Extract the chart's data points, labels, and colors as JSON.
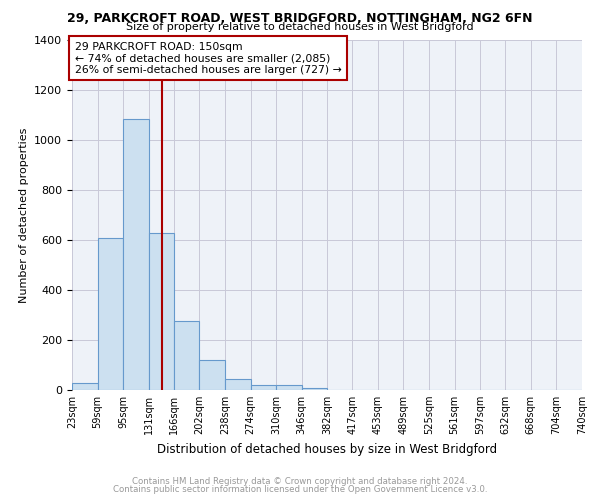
{
  "title": "29, PARKCROFT ROAD, WEST BRIDGFORD, NOTTINGHAM, NG2 6FN",
  "subtitle": "Size of property relative to detached houses in West Bridgford",
  "xlabel": "Distribution of detached houses by size in West Bridgford",
  "ylabel": "Number of detached properties",
  "annotation_line1": "29 PARKCROFT ROAD: 150sqm",
  "annotation_line2": "← 74% of detached houses are smaller (2,085)",
  "annotation_line3": "26% of semi-detached houses are larger (727) →",
  "property_size": 150,
  "bar_color": "#cce0f0",
  "bar_edgecolor": "#6699cc",
  "vline_color": "#aa0000",
  "annotation_box_color": "#aa0000",
  "bin_edges": [
    23,
    59,
    95,
    131,
    166,
    202,
    238,
    274,
    310,
    346,
    382,
    417,
    453,
    489,
    525,
    561,
    597,
    632,
    668,
    704,
    740
  ],
  "bin_counts": [
    30,
    610,
    1085,
    630,
    275,
    120,
    45,
    20,
    20,
    10,
    0,
    0,
    0,
    0,
    0,
    0,
    0,
    0,
    0,
    0
  ],
  "ylim": [
    0,
    1400
  ],
  "yticks": [
    0,
    200,
    400,
    600,
    800,
    1000,
    1200,
    1400
  ],
  "footnote1": "Contains HM Land Registry data © Crown copyright and database right 2024.",
  "footnote2": "Contains public sector information licensed under the Open Government Licence v3.0.",
  "background_color": "#ffffff",
  "grid_color": "#c8c8d8",
  "plot_bg_color": "#eef2f8"
}
